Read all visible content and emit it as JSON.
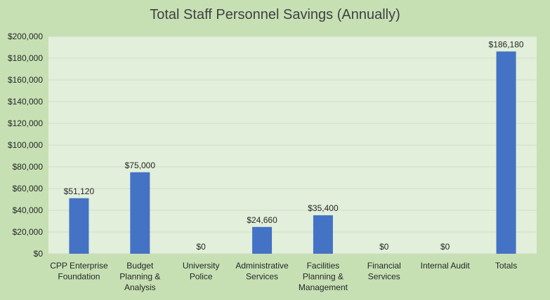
{
  "chart_data": {
    "type": "bar",
    "title": "Total Staff Personnel Savings (Annually)",
    "xlabel": "",
    "ylabel": "",
    "ylim": [
      0,
      200000
    ],
    "y_ticks": [
      "$0",
      "$20,000",
      "$40,000",
      "$60,000",
      "$80,000",
      "$100,000",
      "$120,000",
      "$140,000",
      "$160,000",
      "$180,000",
      "$200,000"
    ],
    "y_tick_values": [
      0,
      20000,
      40000,
      60000,
      80000,
      100000,
      120000,
      140000,
      160000,
      180000,
      200000
    ],
    "grid": true,
    "legend": "none",
    "categories": [
      [
        "CPP Enterprise",
        "Foundation"
      ],
      [
        "Budget",
        "Planning &",
        "Analysis"
      ],
      [
        "University",
        "Police"
      ],
      [
        "Administrative",
        "Services"
      ],
      [
        "Facilities",
        "Planning &",
        "Management"
      ],
      [
        "Financial",
        "Services"
      ],
      [
        "Internal Audit"
      ],
      [
        "Totals"
      ]
    ],
    "values": [
      51120,
      75000,
      0,
      24660,
      35400,
      0,
      0,
      186180
    ],
    "data_labels": [
      "$51,120",
      "$75,000",
      "$0",
      "$24,660",
      "$35,400",
      "$0",
      "$0",
      "$186,180"
    ],
    "colors": {
      "bar": "#4472c4",
      "plot_background": "#e2efda",
      "chart_background": "#c6e0b4",
      "gridline": "#d0dcc8"
    }
  }
}
